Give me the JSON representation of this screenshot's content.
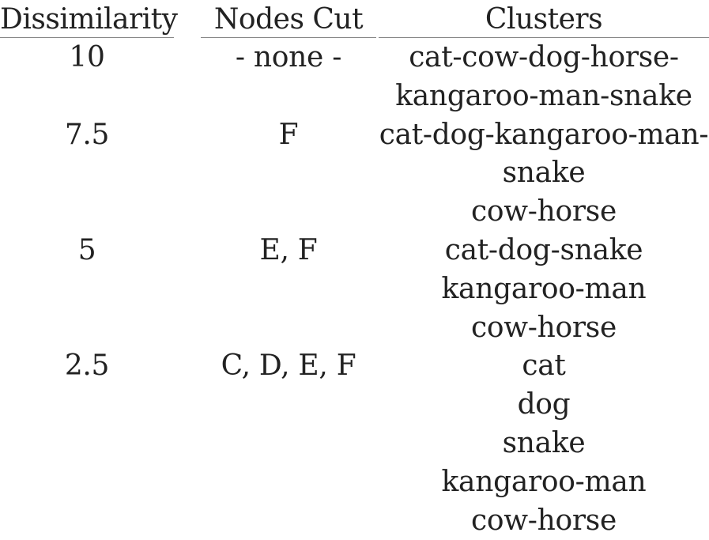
{
  "headers": {
    "dissimilarity": "Dissimilarity",
    "nodes_cut": "Nodes Cut",
    "clusters": "Clusters"
  },
  "rows": [
    {
      "dissimilarity": "10",
      "nodes_cut": "- none -",
      "clusters": [
        "cat-cow-dog-horse-",
        "kangaroo-man-snake"
      ]
    },
    {
      "dissimilarity": "7.5",
      "nodes_cut": "F",
      "clusters": [
        "cat-dog-kangaroo-man-",
        "snake",
        "cow-horse"
      ]
    },
    {
      "dissimilarity": "5",
      "nodes_cut": "E, F",
      "clusters": [
        "cat-dog-snake",
        "kangaroo-man",
        "cow-horse"
      ]
    },
    {
      "dissimilarity": "2.5",
      "nodes_cut": "C, D, E, F",
      "clusters": [
        "cat",
        "dog",
        "snake",
        "kangaroo-man",
        "cow-horse"
      ]
    }
  ]
}
